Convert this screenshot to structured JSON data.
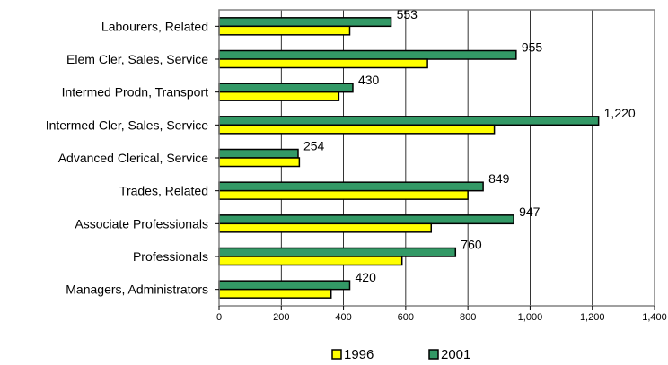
{
  "chart_data": {
    "type": "bar",
    "orientation": "horizontal",
    "categories": [
      "Labourers, Related",
      "Elem Cler, Sales, Service",
      "Intermed Prodn, Transport",
      "Intermed Cler, Sales, Service",
      "Advanced Clerical, Service",
      "Trades, Related",
      "Associate Professionals",
      "Professionals",
      "Managers, Administrators"
    ],
    "series": [
      {
        "name": "1996",
        "color": "#ffff00",
        "values": [
          420,
          670,
          385,
          885,
          258,
          800,
          682,
          588,
          360
        ]
      },
      {
        "name": "2001",
        "color": "#339966",
        "values": [
          553,
          955,
          430,
          1220,
          254,
          849,
          947,
          760,
          420
        ],
        "data_labels": [
          "553",
          "955",
          "430",
          "1,220",
          "254",
          "849",
          "947",
          "760",
          "420"
        ]
      }
    ],
    "xlim": [
      0,
      1400
    ],
    "x_ticks": [
      "0",
      "200",
      "400",
      "600",
      "800",
      "1,000",
      "1,200",
      "1,400"
    ],
    "x_tick_values": [
      0,
      200,
      400,
      600,
      800,
      1000,
      1200,
      1400
    ],
    "grid": "vertical",
    "legend_position": "bottom",
    "title": "",
    "xlabel": "",
    "ylabel": ""
  }
}
